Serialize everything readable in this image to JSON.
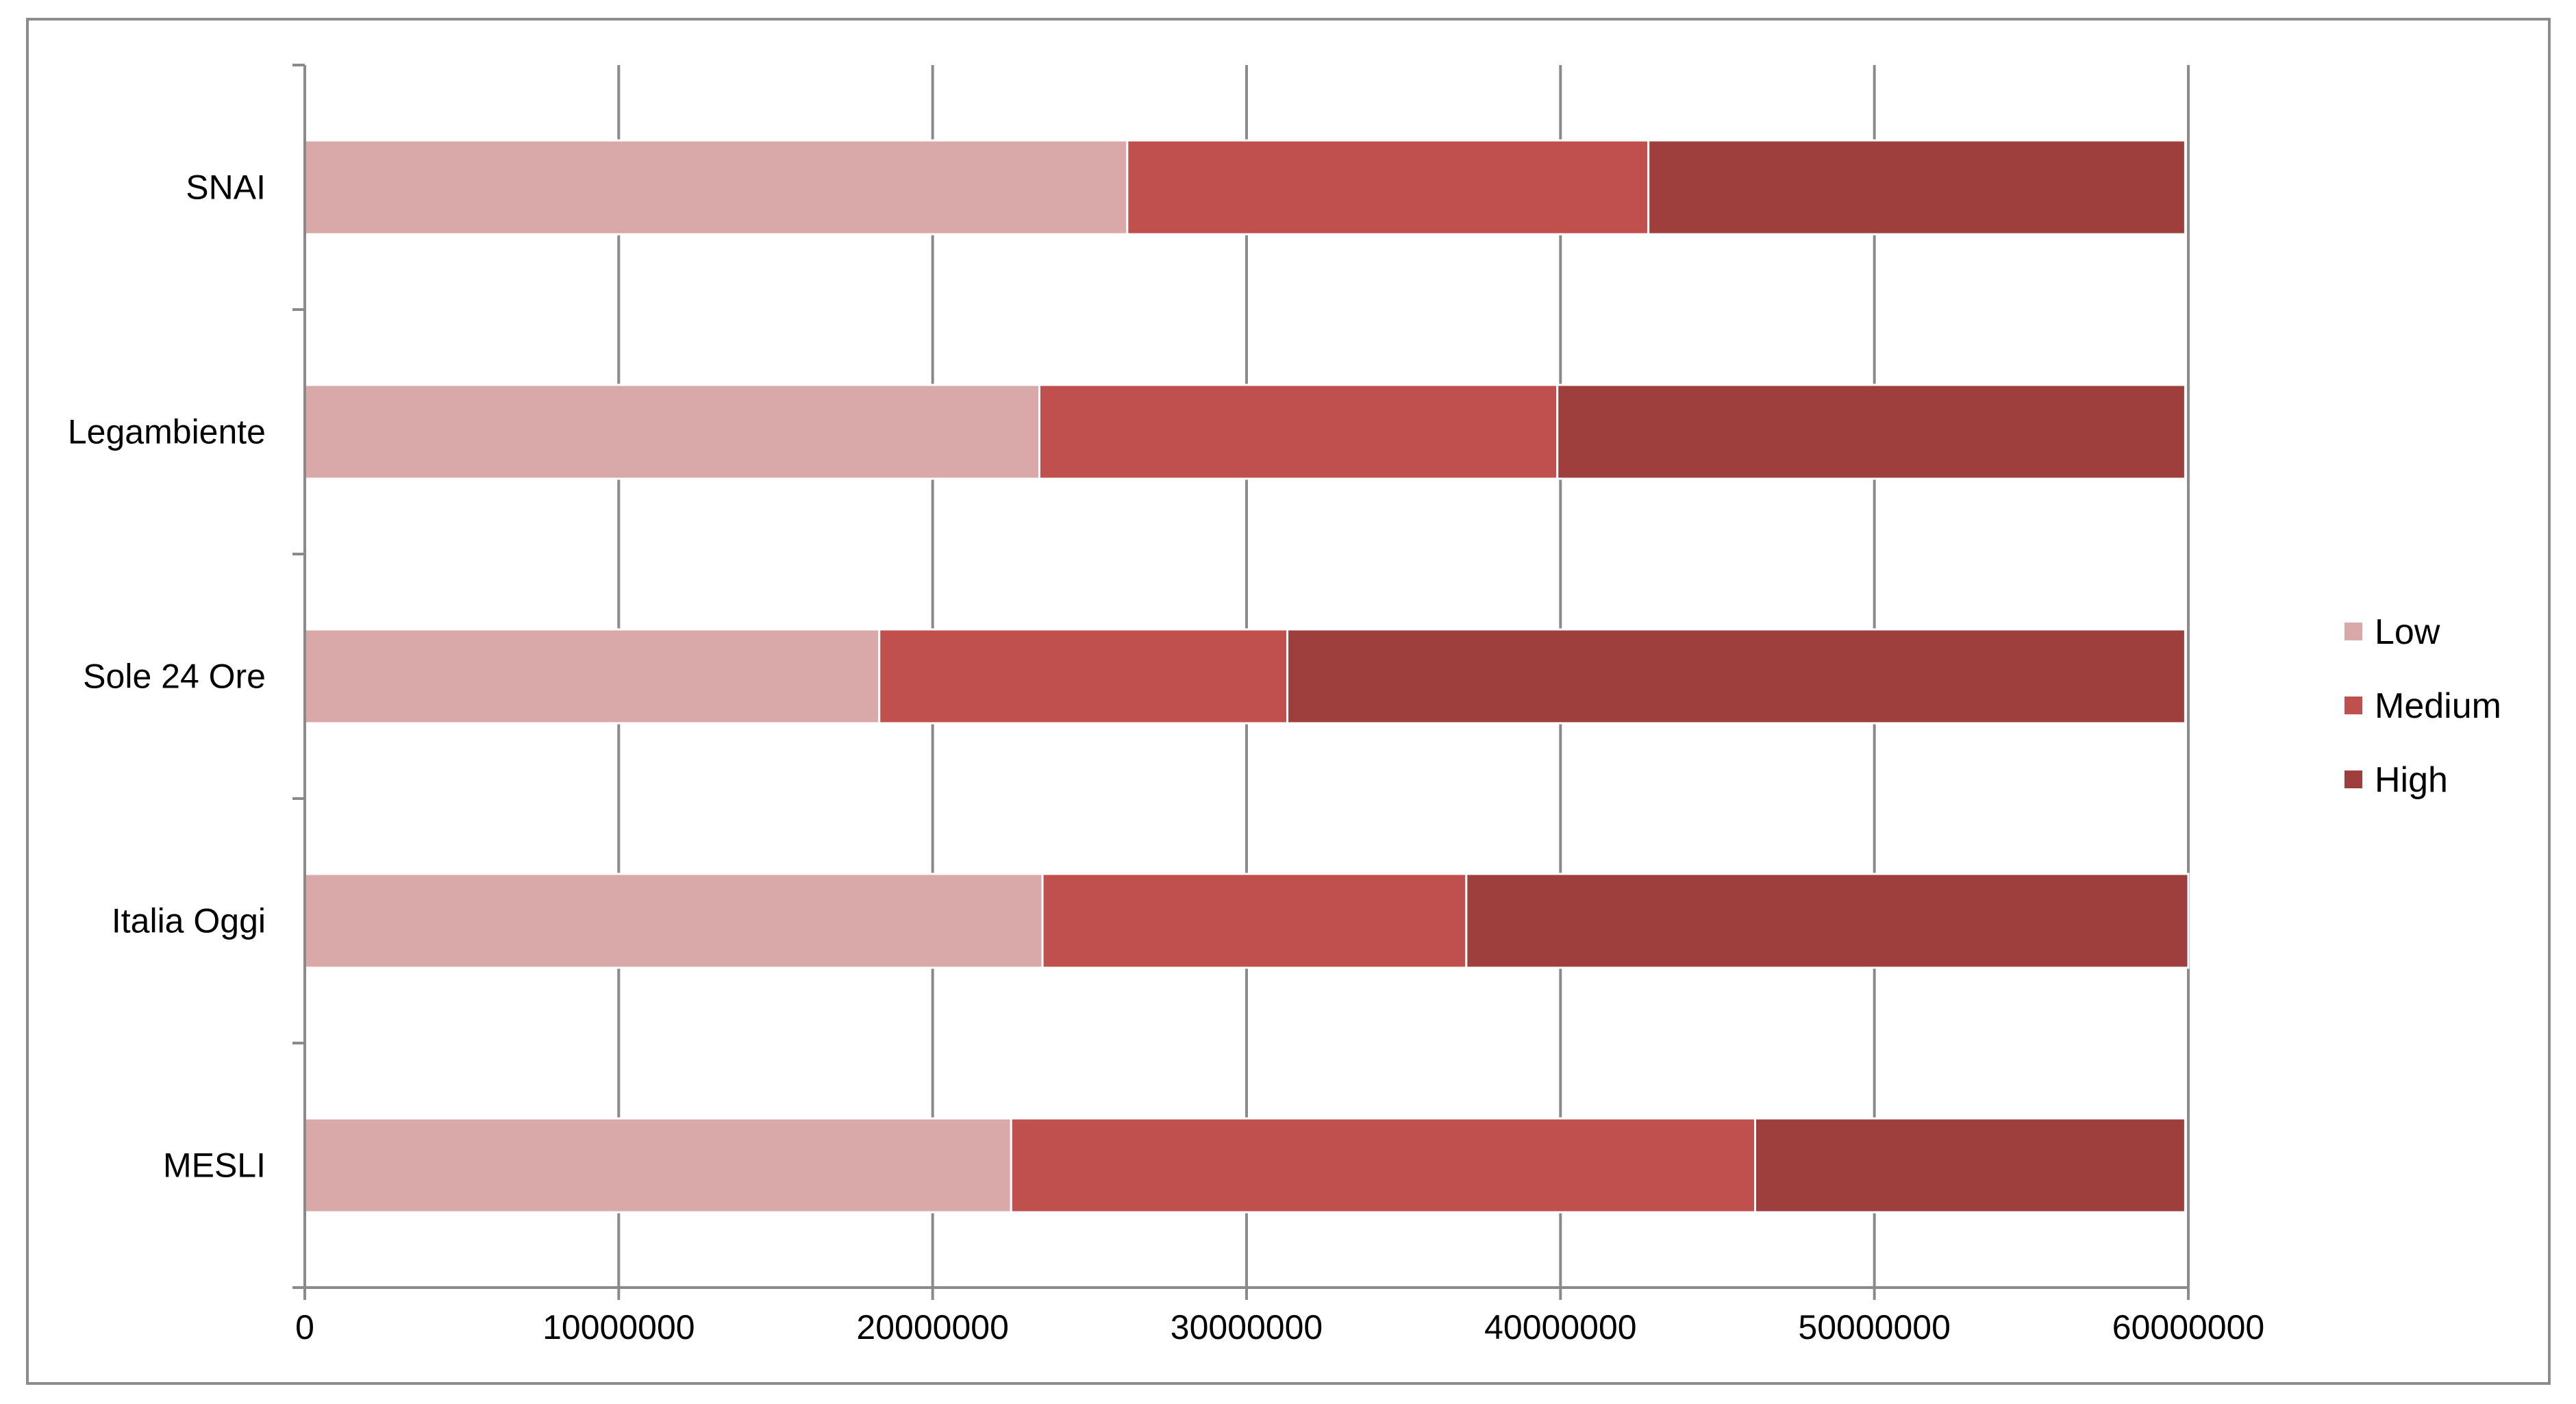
{
  "chart_data": {
    "type": "bar",
    "orientation": "horizontal",
    "stacked": true,
    "title": "",
    "xlabel": "",
    "ylabel": "",
    "categories": [
      "SNAI",
      "Legambiente",
      "Sole 24 Ore",
      "Italia Oggi",
      "MESLI"
    ],
    "series": [
      {
        "name": "Low",
        "color": "#d9a9a9",
        "values": [
          26200000,
          23400000,
          18300000,
          23500000,
          22500000
        ]
      },
      {
        "name": "Medium",
        "color": "#c0504d",
        "values": [
          16600000,
          16500000,
          13000000,
          13500000,
          23700000
        ]
      },
      {
        "name": "High",
        "color": "#9e3f3d",
        "values": [
          17100000,
          20000000,
          28600000,
          23000000,
          13700000
        ]
      }
    ],
    "xlim": [
      0,
      60000000
    ],
    "xticks": [
      0,
      10000000,
      20000000,
      30000000,
      40000000,
      50000000,
      60000000
    ],
    "xtick_labels": [
      "0",
      "10000000",
      "20000000",
      "30000000",
      "40000000",
      "50000000",
      "60000000"
    ],
    "grid": "vertical",
    "legend_position": "right"
  }
}
